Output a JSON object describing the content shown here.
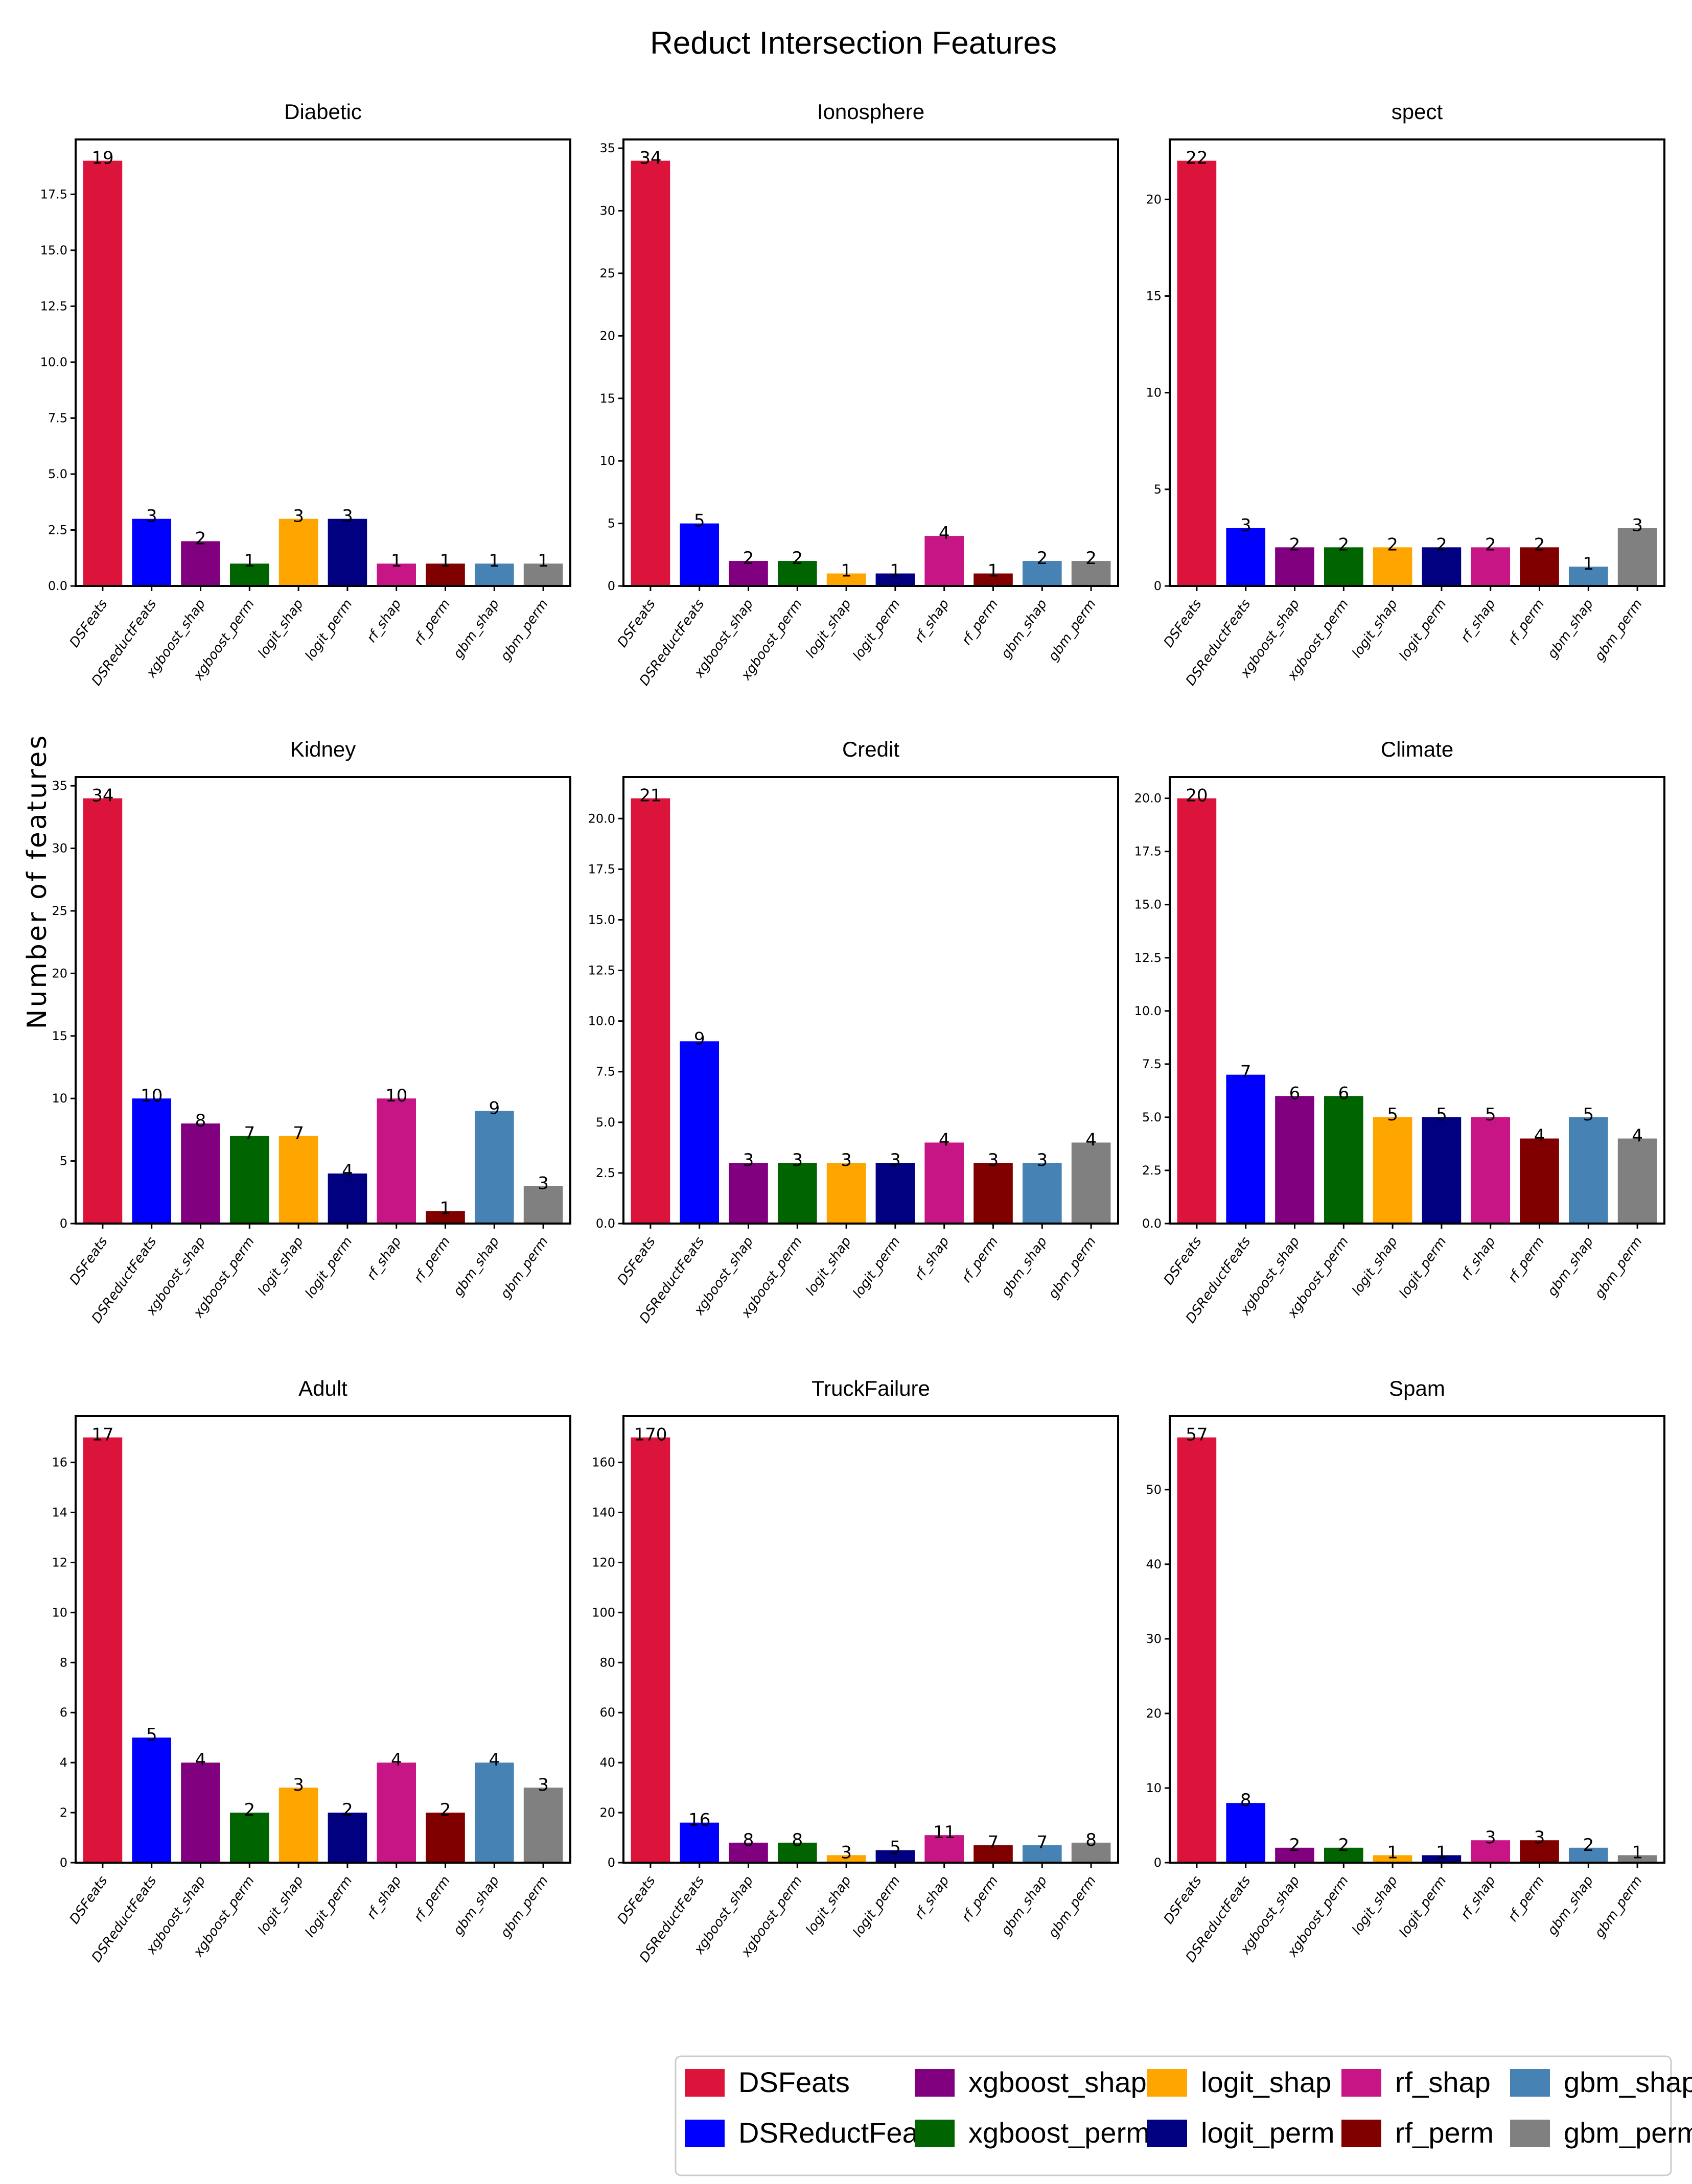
{
  "title": "Reduct Intersection Features",
  "ylabel": "Number of features",
  "series_names": [
    "DSFeats",
    "DSReductFeats",
    "xgboost_shap",
    "xgboost_perm",
    "logit_shap",
    "logit_perm",
    "rf_shap",
    "rf_perm",
    "gbm_shap",
    "gbm_perm"
  ],
  "colors": [
    "#dc143c",
    "#0000ff",
    "#800080",
    "#006400",
    "#ffa500",
    "#000080",
    "#c71585",
    "#800000",
    "#4682b4",
    "#808080"
  ],
  "legend": {
    "items": [
      {
        "label": "DSFeats",
        "color": "#dc143c"
      },
      {
        "label": "DSReductFeats",
        "color": "#0000ff"
      },
      {
        "label": "xgboost_shap",
        "color": "#800080"
      },
      {
        "label": "xgboost_perm",
        "color": "#006400"
      },
      {
        "label": "logit_shap",
        "color": "#ffa500"
      },
      {
        "label": "logit_perm",
        "color": "#000080"
      },
      {
        "label": "rf_shap",
        "color": "#c71585"
      },
      {
        "label": "rf_perm",
        "color": "#800000"
      },
      {
        "label": "gbm_shap",
        "color": "#4682b4"
      },
      {
        "label": "gbm_perm",
        "color": "#808080"
      }
    ]
  },
  "chart_data": [
    {
      "type": "bar",
      "title": "Diabetic",
      "categories": [
        "DSFeats",
        "DSReductFeats",
        "xgboost_shap",
        "xgboost_perm",
        "logit_shap",
        "logit_perm",
        "rf_shap",
        "rf_perm",
        "gbm_shap",
        "gbm_perm"
      ],
      "values": [
        19,
        3,
        2,
        1,
        3,
        3,
        1,
        1,
        1,
        1
      ],
      "ylim": [
        0,
        19.95
      ],
      "yticks": [
        "0.0",
        "2.5",
        "5.0",
        "7.5",
        "10.0",
        "12.5",
        "15.0",
        "17.5"
      ],
      "ytick_values": [
        0,
        2.5,
        5,
        7.5,
        10,
        12.5,
        15,
        17.5
      ],
      "xlabel": "",
      "ylabel": ""
    },
    {
      "type": "bar",
      "title": "Ionosphere",
      "categories": [
        "DSFeats",
        "DSReductFeats",
        "xgboost_shap",
        "xgboost_perm",
        "logit_shap",
        "logit_perm",
        "rf_shap",
        "rf_perm",
        "gbm_shap",
        "gbm_perm"
      ],
      "values": [
        34,
        5,
        2,
        2,
        1,
        1,
        4,
        1,
        2,
        2
      ],
      "ylim": [
        0,
        35.7
      ],
      "yticks": [
        "0",
        "5",
        "10",
        "15",
        "20",
        "25",
        "30",
        "35"
      ],
      "ytick_values": [
        0,
        5,
        10,
        15,
        20,
        25,
        30,
        35
      ],
      "xlabel": "",
      "ylabel": ""
    },
    {
      "type": "bar",
      "title": "spect",
      "categories": [
        "DSFeats",
        "DSReductFeats",
        "xgboost_shap",
        "xgboost_perm",
        "logit_shap",
        "logit_perm",
        "rf_shap",
        "rf_perm",
        "gbm_shap",
        "gbm_perm"
      ],
      "values": [
        22,
        3,
        2,
        2,
        2,
        2,
        2,
        2,
        1,
        3
      ],
      "ylim": [
        0,
        23.1
      ],
      "yticks": [
        "0",
        "5",
        "10",
        "15",
        "20"
      ],
      "ytick_values": [
        0,
        5,
        10,
        15,
        20
      ],
      "xlabel": "",
      "ylabel": ""
    },
    {
      "type": "bar",
      "title": "Kidney",
      "categories": [
        "DSFeats",
        "DSReductFeats",
        "xgboost_shap",
        "xgboost_perm",
        "logit_shap",
        "logit_perm",
        "rf_shap",
        "rf_perm",
        "gbm_shap",
        "gbm_perm"
      ],
      "values": [
        34,
        10,
        8,
        7,
        7,
        4,
        10,
        1,
        9,
        3
      ],
      "ylim": [
        0,
        35.7
      ],
      "yticks": [
        "0",
        "5",
        "10",
        "15",
        "20",
        "25",
        "30",
        "35"
      ],
      "ytick_values": [
        0,
        5,
        10,
        15,
        20,
        25,
        30,
        35
      ],
      "xlabel": "",
      "ylabel": ""
    },
    {
      "type": "bar",
      "title": "Credit",
      "categories": [
        "DSFeats",
        "DSReductFeats",
        "xgboost_shap",
        "xgboost_perm",
        "logit_shap",
        "logit_perm",
        "rf_shap",
        "rf_perm",
        "gbm_shap",
        "gbm_perm"
      ],
      "values": [
        21,
        9,
        3,
        3,
        3,
        3,
        4,
        3,
        3,
        4
      ],
      "ylim": [
        0,
        22.05
      ],
      "yticks": [
        "0.0",
        "2.5",
        "5.0",
        "7.5",
        "10.0",
        "12.5",
        "15.0",
        "17.5",
        "20.0"
      ],
      "ytick_values": [
        0,
        2.5,
        5,
        7.5,
        10,
        12.5,
        15,
        17.5,
        20
      ],
      "xlabel": "",
      "ylabel": ""
    },
    {
      "type": "bar",
      "title": "Climate",
      "categories": [
        "DSFeats",
        "DSReductFeats",
        "xgboost_shap",
        "xgboost_perm",
        "logit_shap",
        "logit_perm",
        "rf_shap",
        "rf_perm",
        "gbm_shap",
        "gbm_perm"
      ],
      "values": [
        20,
        7,
        6,
        6,
        5,
        5,
        5,
        4,
        5,
        4
      ],
      "ylim": [
        0,
        21
      ],
      "yticks": [
        "0.0",
        "2.5",
        "5.0",
        "7.5",
        "10.0",
        "12.5",
        "15.0",
        "17.5",
        "20.0"
      ],
      "ytick_values": [
        0,
        2.5,
        5,
        7.5,
        10,
        12.5,
        15,
        17.5,
        20
      ],
      "xlabel": "",
      "ylabel": ""
    },
    {
      "type": "bar",
      "title": "Adult",
      "categories": [
        "DSFeats",
        "DSReductFeats",
        "xgboost_shap",
        "xgboost_perm",
        "logit_shap",
        "logit_perm",
        "rf_shap",
        "rf_perm",
        "gbm_shap",
        "gbm_perm"
      ],
      "values": [
        17,
        5,
        4,
        2,
        3,
        2,
        4,
        2,
        4,
        3
      ],
      "ylim": [
        0,
        17.85
      ],
      "yticks": [
        "0",
        "2",
        "4",
        "6",
        "8",
        "10",
        "12",
        "14",
        "16"
      ],
      "ytick_values": [
        0,
        2,
        4,
        6,
        8,
        10,
        12,
        14,
        16
      ],
      "xlabel": "",
      "ylabel": ""
    },
    {
      "type": "bar",
      "title": "TruckFailure",
      "categories": [
        "DSFeats",
        "DSReductFeats",
        "xgboost_shap",
        "xgboost_perm",
        "logit_shap",
        "logit_perm",
        "rf_shap",
        "rf_perm",
        "gbm_shap",
        "gbm_perm"
      ],
      "values": [
        170,
        16,
        8,
        8,
        3,
        5,
        11,
        7,
        7,
        8
      ],
      "ylim": [
        0,
        178.5
      ],
      "yticks": [
        "0",
        "20",
        "40",
        "60",
        "80",
        "100",
        "120",
        "140",
        "160"
      ],
      "ytick_values": [
        0,
        20,
        40,
        60,
        80,
        100,
        120,
        140,
        160
      ],
      "xlabel": "",
      "ylabel": ""
    },
    {
      "type": "bar",
      "title": "Spam",
      "categories": [
        "DSFeats",
        "DSReductFeats",
        "xgboost_shap",
        "xgboost_perm",
        "logit_shap",
        "logit_perm",
        "rf_shap",
        "rf_perm",
        "gbm_shap",
        "gbm_perm"
      ],
      "values": [
        57,
        8,
        2,
        2,
        1,
        1,
        3,
        3,
        2,
        1
      ],
      "ylim": [
        0,
        59.85
      ],
      "yticks": [
        "0",
        "10",
        "20",
        "30",
        "40",
        "50"
      ],
      "ytick_values": [
        0,
        10,
        20,
        30,
        40,
        50
      ],
      "xlabel": "",
      "ylabel": ""
    }
  ]
}
